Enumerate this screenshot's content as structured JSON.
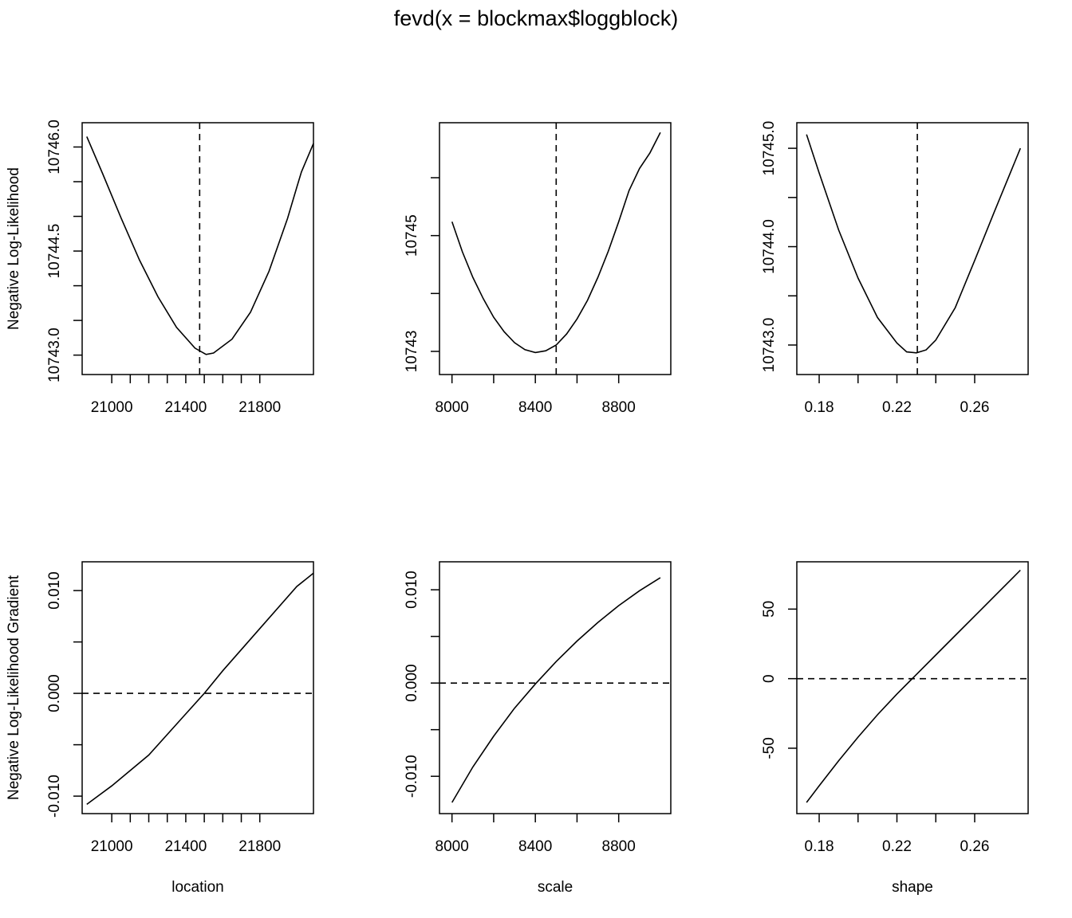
{
  "figure": {
    "title": "fevd(x = blockmax$loggblock)"
  },
  "chart_data": [
    {
      "type": "line",
      "row": 0,
      "col": 0,
      "xlabel": "",
      "ylabel": "Negative Log-Likelihood",
      "xlim": [
        20840,
        22090
      ],
      "ylim": [
        10742.72,
        10746.35
      ],
      "xticks": [
        21000,
        21100,
        21200,
        21300,
        21400,
        21500,
        21600,
        21700,
        21800
      ],
      "xtick_labels": [
        "21000",
        "",
        "",
        "",
        "21400",
        "",
        "",
        "",
        "21800"
      ],
      "yticks": [
        10743.0,
        10743.5,
        10744.0,
        10744.5,
        10745.0,
        10745.5,
        10746.0
      ],
      "ytick_labels": [
        "10743.0",
        "",
        "",
        "10744.5",
        "",
        "",
        "10746.0"
      ],
      "series": [
        {
          "x": [
            20865,
            20950,
            21050,
            21150,
            21250,
            21350,
            21450,
            21510,
            21550,
            21650,
            21750,
            21850,
            21950,
            22000,
            22025,
            22090
          ],
          "y": [
            10746.15,
            10745.62,
            10744.98,
            10744.37,
            10743.84,
            10743.4,
            10743.1,
            10743.01,
            10743.03,
            10743.23,
            10743.62,
            10744.21,
            10744.97,
            10745.42,
            10745.64,
            10746.05
          ]
        }
      ],
      "vline": 21475,
      "hline": null
    },
    {
      "type": "line",
      "row": 0,
      "col": 1,
      "xlabel": "",
      "ylabel": "",
      "xlim": [
        7940,
        9050
      ],
      "ylim": [
        10742.6,
        10746.95
      ],
      "xticks": [
        8000,
        8200,
        8400,
        8600,
        8800
      ],
      "xtick_labels": [
        "8000",
        "",
        "8400",
        "",
        "8800"
      ],
      "yticks": [
        10743,
        10744,
        10745,
        10746
      ],
      "ytick_labels": [
        "10743",
        "",
        "10745",
        ""
      ],
      "series": [
        {
          "x": [
            8000,
            8050,
            8100,
            8150,
            8200,
            8250,
            8300,
            8350,
            8400,
            8450,
            8500,
            8550,
            8600,
            8650,
            8700,
            8750,
            8800,
            8850,
            8900,
            8950,
            9000
          ],
          "y": [
            10745.24,
            10744.72,
            10744.28,
            10743.91,
            10743.59,
            10743.34,
            10743.15,
            10743.03,
            10742.98,
            10743.01,
            10743.11,
            10743.3,
            10743.56,
            10743.88,
            10744.28,
            10744.73,
            10745.24,
            10745.78,
            10746.16,
            10746.43,
            10746.78
          ]
        }
      ],
      "vline": 8500,
      "hline": null
    },
    {
      "type": "line",
      "row": 0,
      "col": 2,
      "xlabel": "",
      "ylabel": "",
      "xlim": [
        0.1685,
        0.2875
      ],
      "ylim": [
        10742.7,
        10745.26
      ],
      "xticks": [
        0.18,
        0.2,
        0.22,
        0.24,
        0.26
      ],
      "xtick_labels": [
        "0.18",
        "",
        "0.22",
        "",
        "0.26"
      ],
      "yticks": [
        10743.0,
        10743.5,
        10744.0,
        10744.5,
        10745.0
      ],
      "ytick_labels": [
        "10743.0",
        "",
        "10744.0",
        "",
        "10745.0"
      ],
      "series": [
        {
          "x": [
            0.1735,
            0.18,
            0.19,
            0.2,
            0.21,
            0.22,
            0.225,
            0.23,
            0.235,
            0.24,
            0.25,
            0.26,
            0.27,
            0.28,
            0.2835
          ],
          "y": [
            10745.14,
            10744.75,
            10744.17,
            10743.68,
            10743.28,
            10743.02,
            10742.93,
            10742.92,
            10742.95,
            10743.05,
            10743.38,
            10743.86,
            10744.35,
            10744.83,
            10745.0
          ]
        }
      ],
      "vline": 0.2305,
      "hline": null
    },
    {
      "type": "line",
      "row": 1,
      "col": 0,
      "xlabel": "location",
      "ylabel": "Negative Log-Likelihood Gradient",
      "xlim": [
        20840,
        22090
      ],
      "ylim": [
        -0.0117,
        0.0128
      ],
      "xticks": [
        21000,
        21100,
        21200,
        21300,
        21400,
        21500,
        21600,
        21700,
        21800
      ],
      "xtick_labels": [
        "21000",
        "",
        "",
        "",
        "21400",
        "",
        "",
        "",
        "21800"
      ],
      "yticks": [
        -0.01,
        -0.005,
        0.0,
        0.005,
        0.01
      ],
      "ytick_labels": [
        "-0.010",
        "",
        "0.000",
        "",
        "0.010"
      ],
      "series": [
        {
          "x": [
            20865,
            21000,
            21200,
            21400,
            21500,
            21600,
            21800,
            22000,
            22090
          ],
          "y": [
            -0.0108,
            -0.009,
            -0.006,
            -0.002,
            0.0,
            0.0022,
            0.0063,
            0.0104,
            0.0117
          ]
        }
      ],
      "vline": null,
      "hline": 0
    },
    {
      "type": "line",
      "row": 1,
      "col": 1,
      "xlabel": "scale",
      "ylabel": "",
      "xlim": [
        7940,
        9050
      ],
      "ylim": [
        -0.014,
        0.013
      ],
      "xticks": [
        8000,
        8200,
        8400,
        8600,
        8800
      ],
      "xtick_labels": [
        "8000",
        "",
        "8400",
        "",
        "8800"
      ],
      "yticks": [
        -0.01,
        -0.005,
        0.0,
        0.005,
        0.01
      ],
      "ytick_labels": [
        "-0.010",
        "",
        "0.000",
        "",
        "0.010"
      ],
      "series": [
        {
          "x": [
            8000,
            8100,
            8200,
            8300,
            8400,
            8500,
            8600,
            8700,
            8800,
            8900,
            9000
          ],
          "y": [
            -0.0128,
            -0.009,
            -0.0057,
            -0.0027,
            -0.0001,
            0.0023,
            0.0045,
            0.0065,
            0.0083,
            0.0099,
            0.0113
          ]
        }
      ],
      "vline": null,
      "hline": 0
    },
    {
      "type": "line",
      "row": 1,
      "col": 2,
      "xlabel": "shape",
      "ylabel": "",
      "xlim": [
        0.1685,
        0.2875
      ],
      "ylim": [
        -97,
        84
      ],
      "xticks": [
        0.18,
        0.2,
        0.22,
        0.24,
        0.26
      ],
      "xtick_labels": [
        "0.18",
        "",
        "0.22",
        "",
        "0.26"
      ],
      "yticks": [
        -50,
        0,
        50
      ],
      "ytick_labels": [
        "-50",
        "0",
        "50"
      ],
      "series": [
        {
          "x": [
            0.1735,
            0.18,
            0.19,
            0.2,
            0.21,
            0.22,
            0.23,
            0.24,
            0.25,
            0.26,
            0.27,
            0.28,
            0.2835
          ],
          "y": [
            -89,
            -77,
            -59,
            -42,
            -26,
            -11,
            3,
            17,
            31,
            45,
            59,
            73,
            78
          ]
        }
      ],
      "vline": null,
      "hline": 0
    }
  ]
}
